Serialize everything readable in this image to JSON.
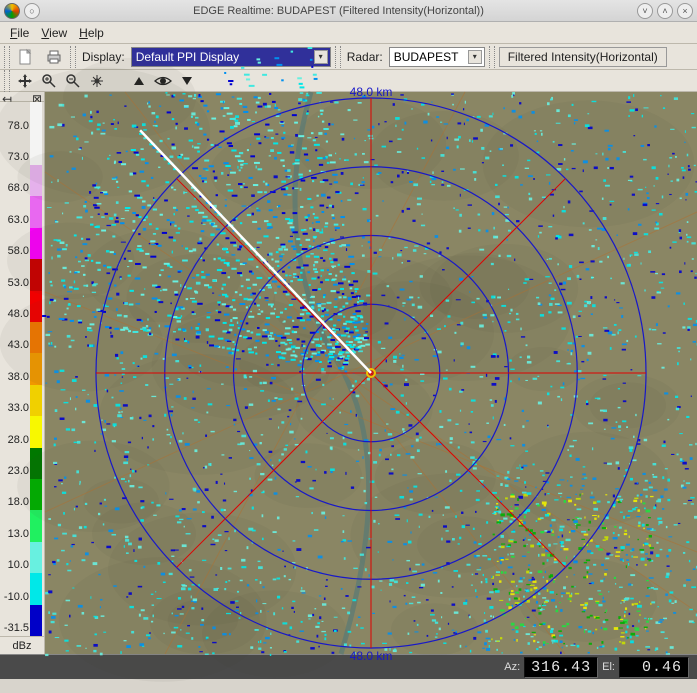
{
  "window": {
    "title": "EDGE Realtime: BUDAPEST (Filtered Intensity(Horizontal))"
  },
  "menu": {
    "file": "File",
    "view": "View",
    "help": "Help"
  },
  "toolbar": {
    "display_label": "Display:",
    "display_value": "Default PPI Display",
    "radar_label": "Radar:",
    "radar_value": "BUDAPEST",
    "filter_button": "Filtered Intensity(Horizontal)"
  },
  "legend": {
    "unit": "dBz",
    "stops": [
      {
        "v": "-31.5",
        "c": "#0000c8"
      },
      {
        "v": "-10.0",
        "c": "#00e8e8"
      },
      {
        "v": "10.0",
        "c": "#68f0e0"
      },
      {
        "v": "13.0",
        "c": "#20f060"
      },
      {
        "v": "18.0",
        "c": "#00b000"
      },
      {
        "v": "23.0",
        "c": "#007800"
      },
      {
        "v": "28.0",
        "c": "#f8f800"
      },
      {
        "v": "33.0",
        "c": "#f0d000"
      },
      {
        "v": "38.0",
        "c": "#f09800"
      },
      {
        "v": "43.0",
        "c": "#f07800"
      },
      {
        "v": "48.0",
        "c": "#f00000"
      },
      {
        "v": "53.0",
        "c": "#c80000"
      },
      {
        "v": "58.0",
        "c": "#f800f8"
      },
      {
        "v": "63.0",
        "c": "#e868f0"
      },
      {
        "v": "68.0",
        "c": "#f0b8f8"
      },
      {
        "v": "73.0",
        "c": "#ffffff"
      },
      {
        "v": "78.0",
        "c": "#ffffff"
      }
    ]
  },
  "radar_display": {
    "range_label": "48.0 km",
    "background_color": "#8a8664",
    "ring_color": "#1818c8",
    "crosshair_color": "#e00000",
    "beam_color": "#ffffff",
    "beam_azimuth": 316.43,
    "map_line_color": "#b07030",
    "river_color": "#507878",
    "rings_km": [
      12,
      24,
      36,
      48
    ],
    "max_range_km": 48
  },
  "status": {
    "az_label": "Az:",
    "az_value": "316.43",
    "el_label": "El:",
    "el_value": "0.46"
  }
}
